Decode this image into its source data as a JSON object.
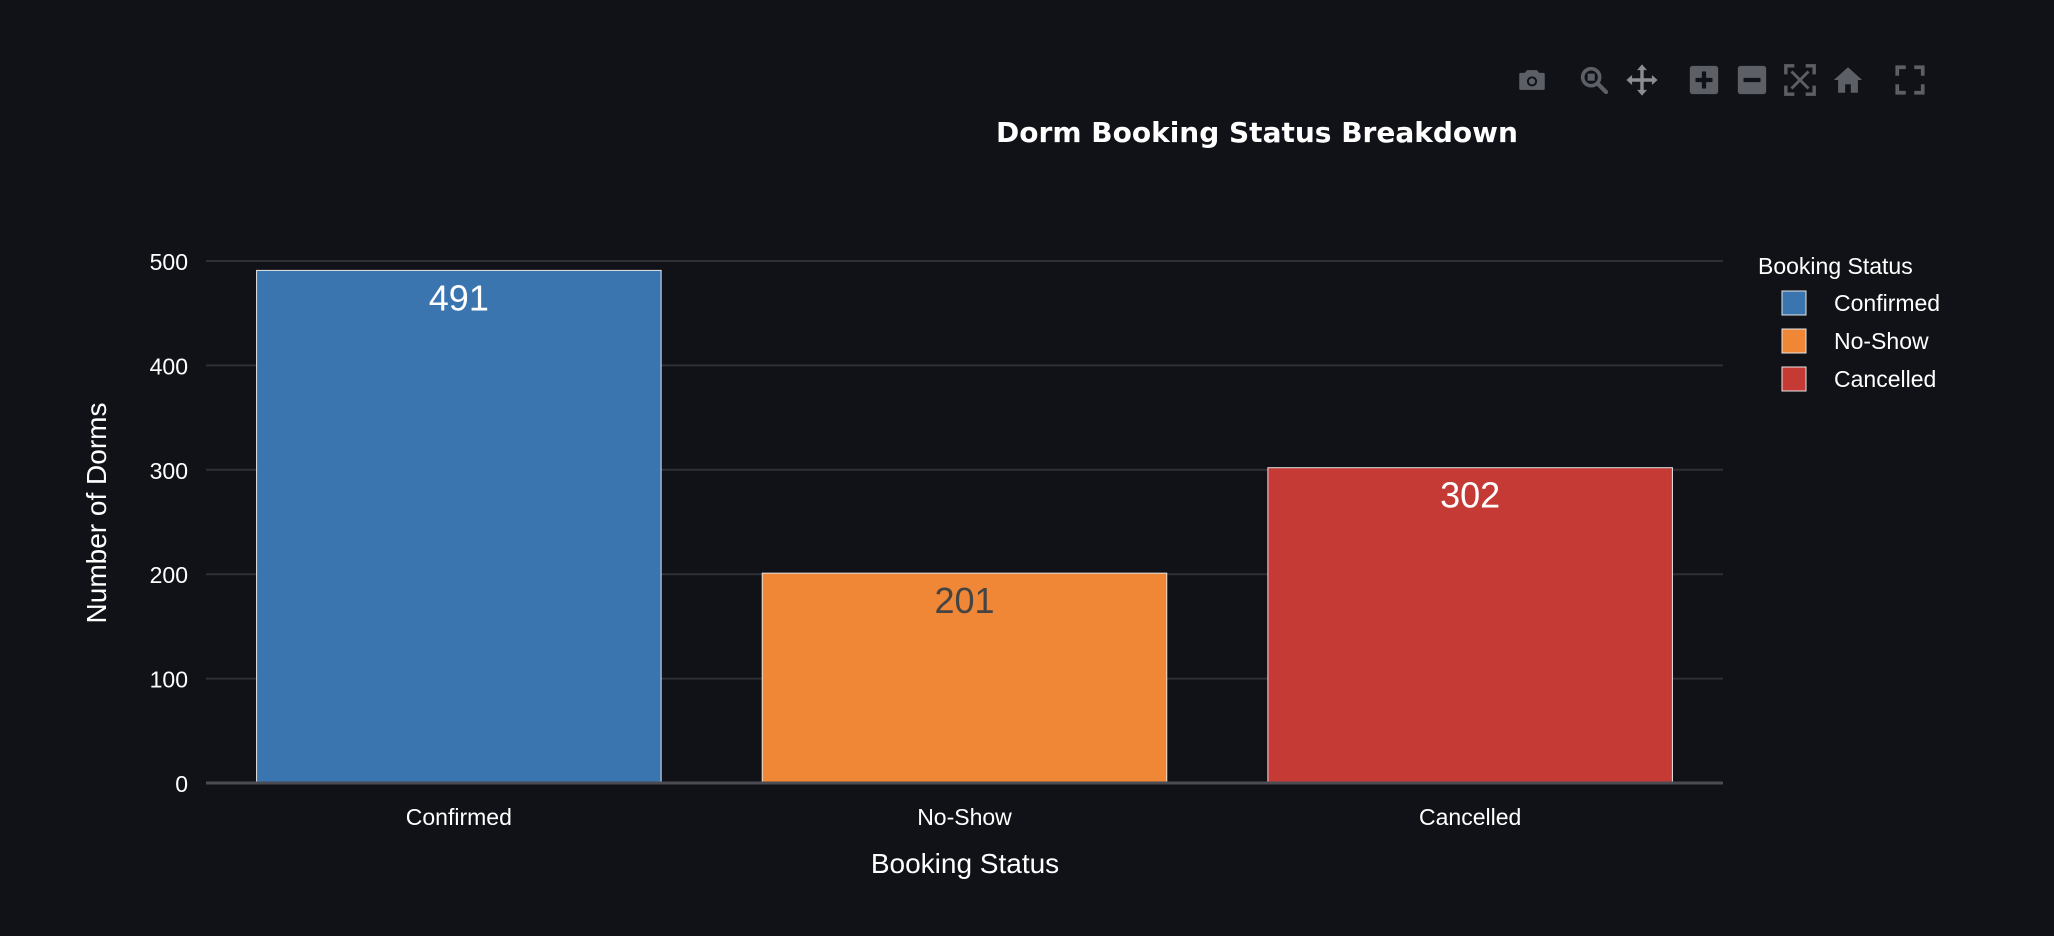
{
  "modebar": {
    "buttons": [
      {
        "icon": "camera-icon"
      },
      {
        "icon": "zoom-icon"
      },
      {
        "icon": "pan-icon"
      },
      {
        "icon": "zoom-in-icon"
      },
      {
        "icon": "zoom-out-icon"
      },
      {
        "icon": "autoscale-icon"
      },
      {
        "icon": "reset-axes-icon"
      },
      {
        "icon": "fullscreen-icon"
      }
    ]
  },
  "chart_data": {
    "type": "bar",
    "title": "Dorm Booking Status Breakdown",
    "xlabel": "Booking Status",
    "ylabel": "Number of Dorms",
    "categories": [
      "Confirmed",
      "No-Show",
      "Cancelled"
    ],
    "values": [
      491,
      201,
      302
    ],
    "value_labels": [
      "491",
      "201",
      "302"
    ],
    "colors": [
      "#3b75b0",
      "#ef8736",
      "#c63a35"
    ],
    "label_colors": [
      "#ffffff",
      "#444444",
      "#ffffff"
    ],
    "ylim": [
      0,
      500
    ],
    "yticks": [
      0,
      100,
      200,
      300,
      400,
      500
    ],
    "ytick_labels": [
      "0",
      "100",
      "200",
      "300",
      "400",
      "500"
    ],
    "grid": true,
    "legend": {
      "title": "Booking Status",
      "placement": "right",
      "entries": [
        "Confirmed",
        "No-Show",
        "Cancelled"
      ]
    },
    "background": "#111217",
    "grid_color": "#2d2f36",
    "text_color": "#ffffff"
  }
}
